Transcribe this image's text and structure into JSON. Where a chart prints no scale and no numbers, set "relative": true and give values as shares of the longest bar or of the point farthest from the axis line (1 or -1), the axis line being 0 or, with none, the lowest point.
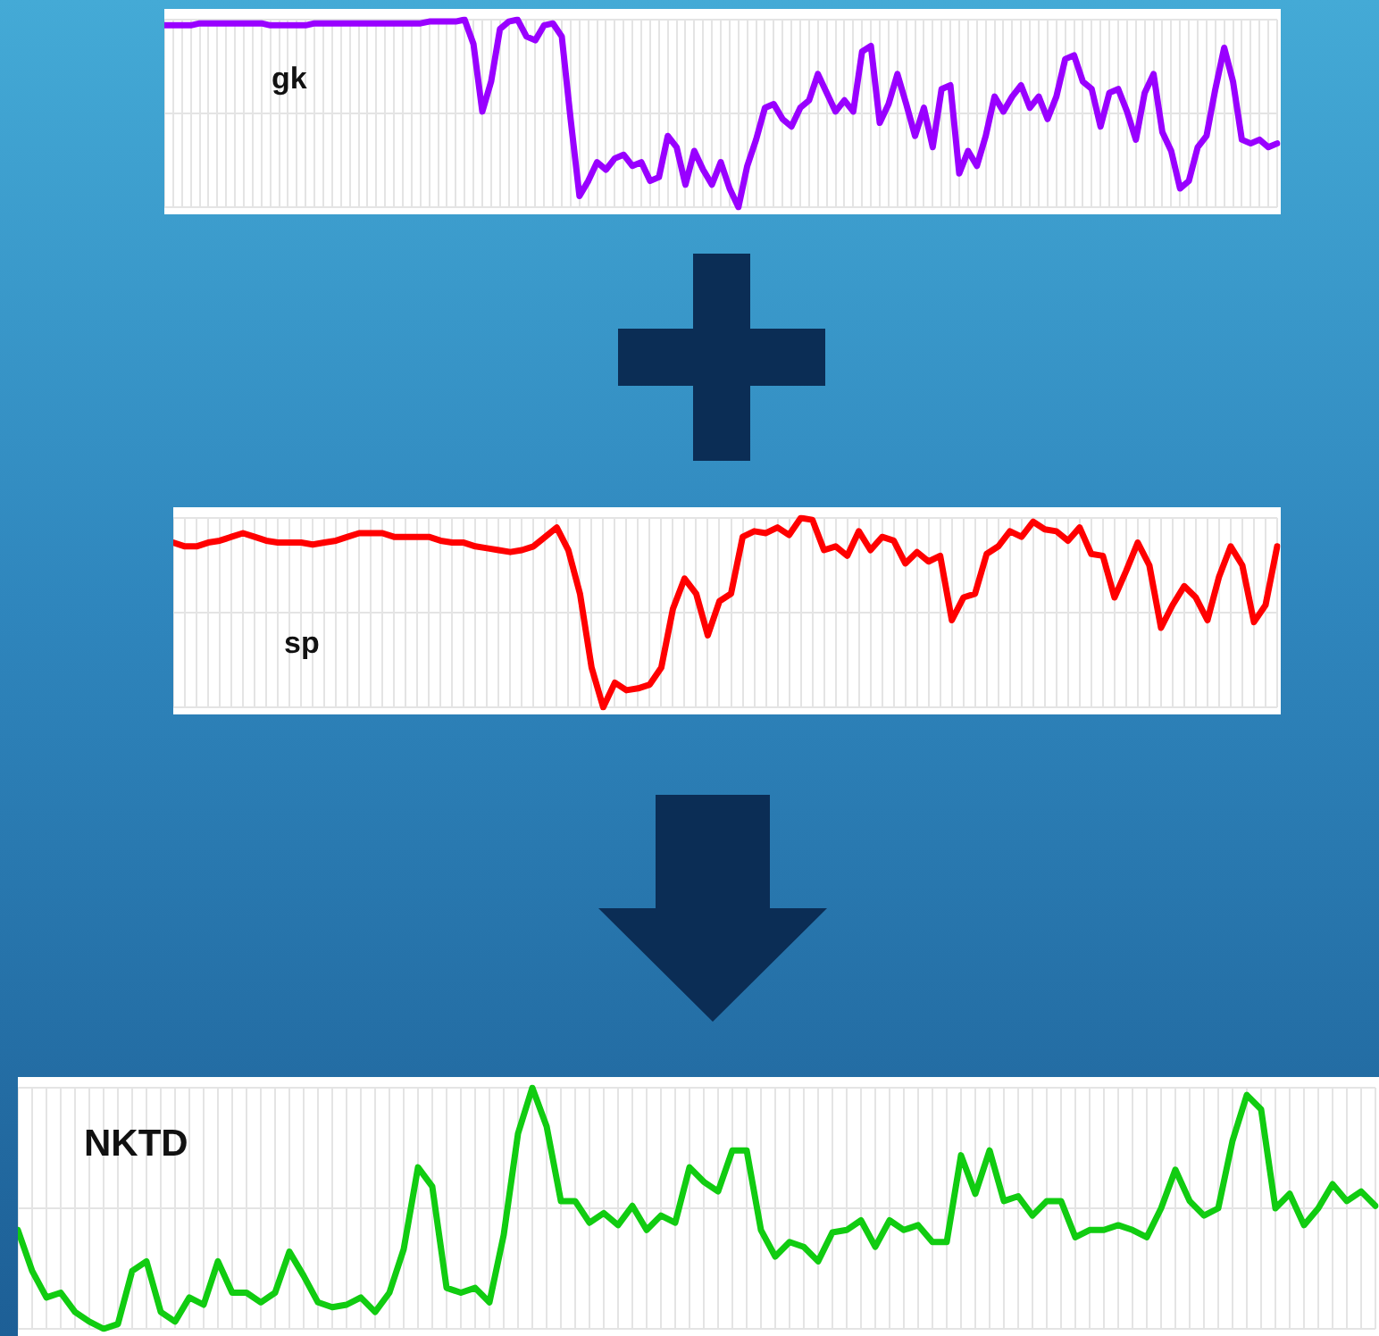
{
  "chart_data": [
    {
      "type": "line",
      "title": "gk",
      "relative": true,
      "grid": true,
      "marker": "none",
      "color": "#9900ff",
      "categories": [
        null,
        null,
        null,
        null,
        null,
        null,
        null,
        null,
        null,
        null,
        null,
        null,
        null,
        null,
        null,
        null,
        null,
        null,
        null,
        null,
        null,
        null,
        null,
        null,
        null,
        null,
        null,
        null,
        null,
        null,
        null,
        null,
        null,
        null,
        null,
        null,
        null,
        null,
        null,
        null,
        null,
        null,
        null,
        null,
        null,
        null,
        null,
        null,
        null,
        null,
        null,
        null,
        null,
        null,
        null,
        null,
        null,
        null,
        null,
        null,
        null,
        null,
        null,
        null,
        null,
        null,
        null,
        null,
        null,
        null,
        null,
        null,
        null,
        null,
        null,
        null,
        null,
        null,
        null,
        null,
        null,
        null,
        null,
        null,
        null,
        null,
        null,
        null,
        null,
        null,
        null,
        null,
        null,
        null,
        null,
        null,
        null,
        null,
        null,
        null,
        null,
        null,
        null,
        null,
        null,
        null,
        null,
        null,
        null,
        null,
        null,
        null,
        null,
        null,
        null,
        null,
        null,
        null,
        null,
        null,
        null,
        null,
        null,
        null,
        null,
        null,
        null
      ],
      "values": [
        0.97,
        0.97,
        0.97,
        0.97,
        0.98,
        0.98,
        0.98,
        0.98,
        0.98,
        0.98,
        0.98,
        0.98,
        0.97,
        0.97,
        0.97,
        0.97,
        0.97,
        0.98,
        0.98,
        0.98,
        0.98,
        0.98,
        0.98,
        0.98,
        0.98,
        0.98,
        0.98,
        0.98,
        0.98,
        0.98,
        0.99,
        0.99,
        0.99,
        0.99,
        1,
        0.87,
        0.51,
        0.67,
        0.95,
        0.99,
        1,
        0.91,
        0.89,
        0.97,
        0.98,
        0.91,
        0.47,
        0.06,
        0.14,
        0.24,
        0.2,
        0.26,
        0.28,
        0.22,
        0.24,
        0.14,
        0.16,
        0.38,
        0.32,
        0.12,
        0.3,
        0.2,
        0.12,
        0.24,
        0.1,
        0,
        0.22,
        0.36,
        0.53,
        0.55,
        0.47,
        0.43,
        0.53,
        0.57,
        0.71,
        0.61,
        0.51,
        0.57,
        0.51,
        0.83,
        0.86,
        0.45,
        0.55,
        0.71,
        0.55,
        0.38,
        0.53,
        0.32,
        0.63,
        0.65,
        0.18,
        0.3,
        0.22,
        0.38,
        0.59,
        0.51,
        0.59,
        0.65,
        0.53,
        0.59,
        0.47,
        0.59,
        0.79,
        0.81,
        0.67,
        0.63,
        0.43,
        0.61,
        0.63,
        0.51,
        0.36,
        0.61,
        0.71,
        0.4,
        0.3,
        0.1,
        0.14,
        0.32,
        0.38,
        0.63,
        0.85,
        0.67,
        0.36,
        0.34,
        0.36,
        0.32,
        0.34
      ]
    },
    {
      "type": "line",
      "title": "sp",
      "relative": true,
      "grid": true,
      "marker": "none",
      "color": "#ff0000",
      "categories": [
        null,
        null,
        null,
        null,
        null,
        null,
        null,
        null,
        null,
        null,
        null,
        null,
        null,
        null,
        null,
        null,
        null,
        null,
        null,
        null,
        null,
        null,
        null,
        null,
        null,
        null,
        null,
        null,
        null,
        null,
        null,
        null,
        null,
        null,
        null,
        null,
        null,
        null,
        null,
        null,
        null,
        null,
        null,
        null,
        null,
        null,
        null,
        null,
        null,
        null,
        null,
        null,
        null,
        null,
        null,
        null,
        null,
        null,
        null,
        null,
        null,
        null,
        null,
        null,
        null,
        null,
        null,
        null,
        null,
        null,
        null,
        null,
        null,
        null,
        null,
        null,
        null,
        null,
        null,
        null,
        null,
        null,
        null,
        null,
        null,
        null,
        null,
        null,
        null,
        null,
        null,
        null,
        null,
        null,
        null,
        null
      ],
      "values": [
        0.87,
        0.85,
        0.85,
        0.87,
        0.88,
        0.9,
        0.92,
        0.9,
        0.88,
        0.87,
        0.87,
        0.87,
        0.86,
        0.87,
        0.88,
        0.9,
        0.92,
        0.92,
        0.92,
        0.9,
        0.9,
        0.9,
        0.9,
        0.88,
        0.87,
        0.87,
        0.85,
        0.84,
        0.83,
        0.82,
        0.83,
        0.85,
        0.9,
        0.95,
        0.83,
        0.6,
        0.21,
        0,
        0.13,
        0.09,
        0.1,
        0.12,
        0.21,
        0.52,
        0.68,
        0.6,
        0.38,
        0.56,
        0.6,
        0.9,
        0.93,
        0.92,
        0.95,
        0.91,
        1,
        0.99,
        0.83,
        0.85,
        0.8,
        0.93,
        0.83,
        0.9,
        0.88,
        0.76,
        0.82,
        0.77,
        0.8,
        0.46,
        0.58,
        0.6,
        0.81,
        0.85,
        0.93,
        0.9,
        0.98,
        0.94,
        0.93,
        0.88,
        0.95,
        0.81,
        0.8,
        0.58,
        0.72,
        0.87,
        0.75,
        0.42,
        0.54,
        0.64,
        0.58,
        0.46,
        0.69,
        0.85,
        0.75,
        0.45,
        0.54,
        0.85
      ]
    },
    {
      "type": "line",
      "title": "NKTD",
      "relative": true,
      "grid": true,
      "marker": "none",
      "color": "#11cc11",
      "categories": [
        null,
        null,
        null,
        null,
        null,
        null,
        null,
        null,
        null,
        null,
        null,
        null,
        null,
        null,
        null,
        null,
        null,
        null,
        null,
        null,
        null,
        null,
        null,
        null,
        null,
        null,
        null,
        null,
        null,
        null,
        null,
        null,
        null,
        null,
        null,
        null,
        null,
        null,
        null,
        null,
        null,
        null,
        null,
        null,
        null,
        null,
        null,
        null,
        null,
        null,
        null,
        null,
        null,
        null,
        null,
        null,
        null,
        null,
        null,
        null,
        null,
        null,
        null,
        null,
        null,
        null,
        null,
        null,
        null,
        null,
        null,
        null,
        null,
        null,
        null,
        null,
        null,
        null,
        null,
        null,
        null,
        null,
        null,
        null,
        null,
        null,
        null,
        null,
        null,
        null,
        null,
        null,
        null,
        null,
        null,
        null
      ],
      "values": [
        0.41,
        0.24,
        0.13,
        0.15,
        0.07,
        0.03,
        0,
        0.02,
        0.24,
        0.28,
        0.07,
        0.03,
        0.13,
        0.1,
        0.28,
        0.15,
        0.15,
        0.11,
        0.15,
        0.32,
        0.22,
        0.11,
        0.09,
        0.1,
        0.13,
        0.07,
        0.15,
        0.33,
        0.67,
        0.59,
        0.17,
        0.15,
        0.17,
        0.11,
        0.39,
        0.81,
        1,
        0.84,
        0.53,
        0.53,
        0.44,
        0.48,
        0.43,
        0.51,
        0.41,
        0.47,
        0.44,
        0.67,
        0.61,
        0.57,
        0.74,
        0.74,
        0.41,
        0.3,
        0.36,
        0.34,
        0.28,
        0.4,
        0.41,
        0.45,
        0.34,
        0.45,
        0.41,
        0.43,
        0.36,
        0.36,
        0.72,
        0.56,
        0.74,
        0.53,
        0.55,
        0.47,
        0.53,
        0.53,
        0.38,
        0.41,
        0.41,
        0.43,
        0.41,
        0.38,
        0.5,
        0.66,
        0.53,
        0.47,
        0.5,
        0.78,
        0.97,
        0.91,
        0.5,
        0.56,
        0.43,
        0.5,
        0.6,
        0.53,
        0.57,
        0.51
      ]
    }
  ]
}
